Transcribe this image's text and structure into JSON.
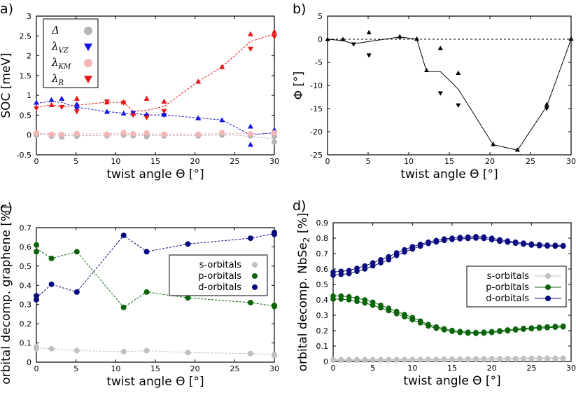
{
  "panels": [
    {
      "id": "a",
      "label": "a)",
      "xlabel": "twist angle Θ [°]",
      "ylabel": "SOC [meV]",
      "xlim": [
        0,
        30
      ],
      "ylim": [
        -0.5,
        3
      ],
      "xticks": [
        "0",
        "5",
        "10",
        "15",
        "20",
        "25",
        "30"
      ],
      "yticks": [
        "-0.5",
        "0",
        "0.5",
        "1",
        "1.5",
        "2",
        "2.5",
        "3"
      ],
      "legend": {
        "position": "top-left",
        "entries": [
          {
            "main": "Δ",
            "sub": ""
          },
          {
            "main": "λ",
            "sub": "VZ"
          },
          {
            "main": "λ",
            "sub": "KM"
          },
          {
            "main": "λ",
            "sub": "R"
          }
        ]
      }
    },
    {
      "id": "b",
      "label": "b)",
      "xlabel": "twist angle Θ [°]",
      "ylabel": "Φ [°]",
      "xlim": [
        0,
        30
      ],
      "ylim": [
        -25,
        5
      ],
      "xticks": [
        "0",
        "5",
        "10",
        "15",
        "20",
        "25",
        "30"
      ],
      "yticks": [
        "-25",
        "-20",
        "-15",
        "-10",
        "-5",
        "0",
        "5"
      ]
    },
    {
      "id": "c",
      "label": "c)",
      "xlabel": "twist angle Θ [°]",
      "ylabel": "orbital decomp. graphene [%]",
      "xlim": [
        0,
        30
      ],
      "ylim": [
        0,
        0.7
      ],
      "xticks": [
        "0",
        "5",
        "10",
        "15",
        "20",
        "25",
        "30"
      ],
      "yticks": [
        "0",
        "0.1",
        "0.2",
        "0.3",
        "0.4",
        "0.5",
        "0.6",
        "0.7"
      ],
      "legend": {
        "position": "center-right",
        "entries": [
          "s-orbitals",
          "p-orbitals",
          "d-orbitals"
        ]
      }
    },
    {
      "id": "d",
      "label": "d)",
      "xlabel": "twist angle Θ [°]",
      "ylabel_main": "orbital decomp. NbSe",
      "ylabel_sub": "2",
      "ylabel_unit": " [%]",
      "xlim": [
        0,
        30
      ],
      "ylim": [
        0,
        0.9
      ],
      "xticks": [
        "0",
        "5",
        "10",
        "15",
        "20",
        "25",
        "30"
      ],
      "yticks": [
        "0",
        "0.1",
        "0.2",
        "0.3",
        "0.4",
        "0.5",
        "0.6",
        "0.7",
        "0.8",
        "0.9"
      ],
      "legend": {
        "position": "center-right",
        "entries": [
          "s-orbitals",
          "p-orbitals",
          "d-orbitals"
        ]
      }
    }
  ],
  "colors": {
    "delta": "#b5b5b5",
    "vz": "#1414e6",
    "km": "#f5b5b5",
    "r": "#e61414",
    "s": "#c0c0c0",
    "p": "#0a640a",
    "d": "#0a0a80",
    "phi": "#000000"
  },
  "chart_data": [
    {
      "panel": "a",
      "type": "scatter",
      "series": [
        {
          "name": "Δ",
          "marker": "circle",
          "color_key": "delta",
          "x": [
            0,
            0,
            1.9,
            3.2,
            5.1,
            5.1,
            8.9,
            11.0,
            11.0,
            12.2,
            13.9,
            13.9,
            16.1,
            16.1,
            20.4,
            23.4,
            27.0,
            27.0,
            30.0,
            30.0
          ],
          "y": [
            0.02,
            0.0,
            -0.03,
            -0.05,
            -0.03,
            0.0,
            -0.02,
            0.0,
            0.03,
            -0.02,
            -0.04,
            0.0,
            0.0,
            -0.02,
            -0.02,
            0.0,
            0.0,
            -0.02,
            -0.03,
            -0.18
          ]
        },
        {
          "name": "λVZ",
          "marker": "triangle-up",
          "color_key": "vz",
          "x": [
            0,
            1.9,
            3.2,
            5.1,
            8.9,
            11.0,
            12.2,
            13.9,
            16.1,
            20.4,
            23.4,
            27.0,
            27.0,
            30.0
          ],
          "y": [
            0.82,
            0.89,
            0.92,
            0.78,
            0.59,
            0.55,
            0.55,
            0.52,
            0.52,
            0.43,
            0.38,
            0.22,
            -0.24,
            0.13
          ]
        },
        {
          "name": "λVZ (−)",
          "marker": "triangle-down",
          "color_key": "vz",
          "x": [
            5.1,
            12.2,
            13.9,
            16.1
          ],
          "y": [
            0.66,
            0.55,
            0.47,
            0.5
          ]
        },
        {
          "name": "λKM",
          "marker": "circle",
          "color_key": "km",
          "x": [
            0,
            1.9,
            3.2,
            5.1,
            8.9,
            11.0,
            12.2,
            13.9,
            16.1,
            20.4,
            23.4,
            27.0,
            30.0
          ],
          "y": [
            0.05,
            0.02,
            0.01,
            0.04,
            0.02,
            0.06,
            0.03,
            0.05,
            0.02,
            0.02,
            0.06,
            0.03,
            0.05
          ]
        },
        {
          "name": "λR",
          "marker": "triangle-down",
          "color_key": "r",
          "x": [
            0,
            3.2,
            5.1,
            8.9,
            11.0,
            12.2,
            13.9,
            16.1,
            27.0,
            30.0
          ],
          "y": [
            0.67,
            0.7,
            0.59,
            0.84,
            0.81,
            0.5,
            0.44,
            0.6,
            2.17,
            2.48
          ]
        },
        {
          "name": "λR (+)",
          "marker": "triangle-up",
          "color_key": "r",
          "x": [
            1.9,
            5.1,
            8.9,
            11.0,
            13.9,
            16.1,
            20.4,
            23.4,
            27.0,
            30.0
          ],
          "y": [
            0.76,
            0.92,
            0.83,
            0.83,
            0.92,
            0.85,
            1.35,
            1.72,
            2.55,
            2.61
          ]
        }
      ],
      "trend_lines": [
        {
          "color_key": "delta",
          "x": [
            0,
            5,
            10,
            15,
            20,
            25,
            30
          ],
          "y": [
            0.01,
            -0.02,
            0.0,
            -0.01,
            -0.01,
            0.0,
            -0.1
          ]
        },
        {
          "color_key": "km",
          "x": [
            0,
            5,
            10,
            15,
            20,
            25,
            30
          ],
          "y": [
            0.04,
            0.03,
            0.04,
            0.03,
            0.03,
            0.04,
            0.04
          ]
        },
        {
          "color_key": "vz",
          "x": [
            0,
            1.9,
            3.2,
            5.1,
            8.9,
            11.0,
            12.2,
            13.9,
            16.1,
            20.4,
            23.4,
            27.0,
            30.0
          ],
          "y": [
            0.8,
            0.85,
            0.82,
            0.7,
            0.59,
            0.55,
            0.55,
            0.5,
            0.51,
            0.43,
            0.38,
            0.0,
            0.06
          ]
        },
        {
          "color_key": "r",
          "x": [
            0,
            1.9,
            3.2,
            5.1,
            8.9,
            11.0,
            12.2,
            13.9,
            16.1,
            20.4,
            23.4,
            27.0,
            30.0
          ],
          "y": [
            0.7,
            0.76,
            0.71,
            0.75,
            0.83,
            0.82,
            0.6,
            0.62,
            0.72,
            1.35,
            1.72,
            2.36,
            2.55
          ]
        }
      ]
    },
    {
      "panel": "b",
      "type": "line",
      "series": [
        {
          "name": "Φ mean",
          "x": [
            0,
            1.9,
            3.2,
            5.1,
            8.9,
            11.0,
            12.2,
            13.9,
            16.1,
            20.4,
            23.4,
            27.0,
            30.0
          ],
          "y": [
            0,
            -0.3,
            -1.0,
            -0.5,
            0.5,
            0.0,
            -7.0,
            -7.0,
            -10.8,
            -22.8,
            -24.0,
            -14.5,
            0.0
          ]
        },
        {
          "name": "Φ up",
          "marker": "triangle-up",
          "x": [
            0,
            1.9,
            5.1,
            8.9,
            11.0,
            12.2,
            13.9,
            16.1,
            20.4,
            23.4,
            27.0,
            30.0
          ],
          "y": [
            0,
            0,
            1.5,
            0.6,
            0.1,
            -6.7,
            -1.9,
            -7.3,
            -22.7,
            -23.9,
            -14.1,
            0.1
          ]
        },
        {
          "name": "Φ down",
          "marker": "triangle-down",
          "x": [
            3.2,
            5.1,
            13.9,
            16.1,
            27.0
          ],
          "y": [
            -1.1,
            -3.5,
            -11.7,
            -14.3,
            -15.0
          ]
        }
      ],
      "reference_line": {
        "y": 0,
        "style": "dashed"
      }
    },
    {
      "panel": "c",
      "type": "scatter",
      "categories_x": [
        0,
        1.9,
        5.1,
        11.0,
        13.9,
        19.1,
        27.0,
        30.0
      ],
      "series": [
        {
          "name": "s-orbitals",
          "color_key": "s",
          "x": [
            0,
            0,
            1.9,
            5.1,
            11.0,
            13.9,
            19.1,
            27.0,
            30.0,
            30.0
          ],
          "y": [
            0.08,
            0.07,
            0.07,
            0.06,
            0.055,
            0.06,
            0.05,
            0.045,
            0.04,
            0.035
          ]
        },
        {
          "name": "p-orbitals",
          "color_key": "p",
          "x": [
            0,
            0,
            1.9,
            5.1,
            11.0,
            13.9,
            19.1,
            27.0,
            30.0,
            30.0
          ],
          "y": [
            0.61,
            0.575,
            0.54,
            0.575,
            0.285,
            0.365,
            0.335,
            0.31,
            0.295,
            0.29
          ]
        },
        {
          "name": "d-orbitals",
          "color_key": "d",
          "x": [
            0,
            0,
            1.9,
            5.1,
            11.0,
            13.9,
            19.1,
            27.0,
            30.0,
            30.0
          ],
          "y": [
            0.345,
            0.325,
            0.405,
            0.365,
            0.66,
            0.575,
            0.615,
            0.645,
            0.665,
            0.675
          ]
        }
      ]
    },
    {
      "panel": "d",
      "type": "line",
      "x": [
        0,
        1,
        2,
        3,
        4,
        5,
        6,
        7,
        8,
        9,
        10,
        11,
        12,
        13,
        14,
        15,
        16,
        17,
        18,
        19,
        20,
        21,
        22,
        23,
        24,
        25,
        26,
        27,
        28,
        29
      ],
      "series": [
        {
          "name": "s-orbitals",
          "color_key": "s",
          "upper": [
            0.012,
            0.012,
            0.012,
            0.012,
            0.012,
            0.013,
            0.013,
            0.013,
            0.013,
            0.014,
            0.014,
            0.014,
            0.015,
            0.015,
            0.016,
            0.016,
            0.017,
            0.017,
            0.018,
            0.018,
            0.019,
            0.019,
            0.02,
            0.02,
            0.021,
            0.021,
            0.022,
            0.022,
            0.022,
            0.022
          ],
          "lower": [
            0.008,
            0.008,
            0.008,
            0.008,
            0.008,
            0.009,
            0.009,
            0.009,
            0.009,
            0.01,
            0.01,
            0.01,
            0.011,
            0.011,
            0.012,
            0.012,
            0.013,
            0.013,
            0.014,
            0.014,
            0.015,
            0.015,
            0.016,
            0.016,
            0.017,
            0.017,
            0.018,
            0.018,
            0.018,
            0.018
          ]
        },
        {
          "name": "p-orbitals",
          "color_key": "p",
          "upper": [
            0.425,
            0.425,
            0.42,
            0.41,
            0.4,
            0.385,
            0.365,
            0.345,
            0.325,
            0.305,
            0.285,
            0.262,
            0.24,
            0.225,
            0.212,
            0.202,
            0.195,
            0.19,
            0.188,
            0.19,
            0.194,
            0.2,
            0.205,
            0.21,
            0.215,
            0.218,
            0.222,
            0.225,
            0.228,
            0.23
          ],
          "lower": [
            0.405,
            0.405,
            0.4,
            0.39,
            0.38,
            0.365,
            0.348,
            0.33,
            0.31,
            0.29,
            0.27,
            0.25,
            0.23,
            0.215,
            0.205,
            0.195,
            0.188,
            0.184,
            0.182,
            0.184,
            0.188,
            0.194,
            0.199,
            0.204,
            0.209,
            0.212,
            0.216,
            0.219,
            0.222,
            0.224
          ]
        },
        {
          "name": "d-orbitals",
          "color_key": "d",
          "upper": [
            0.58,
            0.585,
            0.59,
            0.605,
            0.62,
            0.64,
            0.66,
            0.68,
            0.705,
            0.725,
            0.745,
            0.76,
            0.775,
            0.785,
            0.795,
            0.8,
            0.805,
            0.808,
            0.81,
            0.808,
            0.8,
            0.79,
            0.782,
            0.775,
            0.768,
            0.762,
            0.758,
            0.755,
            0.754,
            0.752
          ],
          "lower": [
            0.56,
            0.565,
            0.57,
            0.585,
            0.6,
            0.62,
            0.64,
            0.66,
            0.688,
            0.71,
            0.73,
            0.748,
            0.765,
            0.775,
            0.785,
            0.792,
            0.796,
            0.798,
            0.8,
            0.798,
            0.79,
            0.78,
            0.774,
            0.767,
            0.761,
            0.755,
            0.751,
            0.749,
            0.748,
            0.748
          ]
        }
      ]
    }
  ]
}
